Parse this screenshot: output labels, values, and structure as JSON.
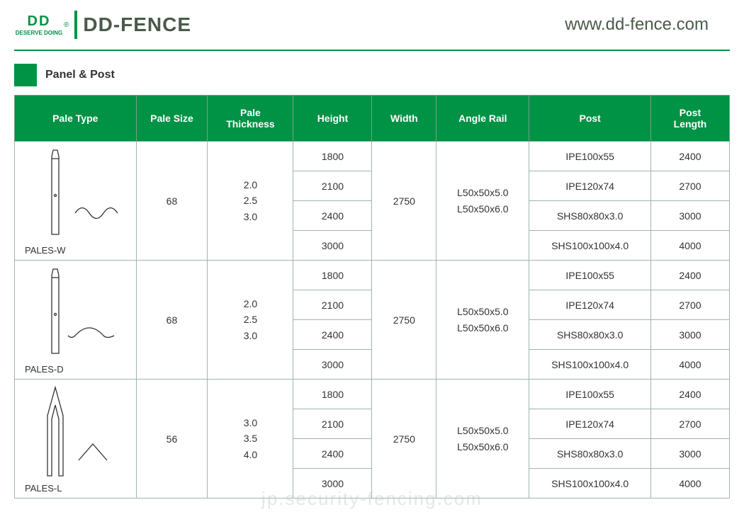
{
  "header": {
    "logo_top": "DD",
    "logo_bottom": "DESERVE DOING",
    "brand": "DD-FENCE",
    "url": "www.dd-fence.com",
    "reg": "®"
  },
  "section": {
    "title": "Panel & Post"
  },
  "table": {
    "headers": [
      "Pale Type",
      "Pale Size",
      "Pale\nThickness",
      "Height",
      "Width",
      "Angle Rail",
      "Post",
      "Post\nLength"
    ],
    "pale_size": [
      "68",
      "68",
      "56"
    ],
    "thickness": [
      "2.0\n2.5\n3.0",
      "2.0\n2.5\n3.0",
      "3.0\n3.5\n4.0"
    ],
    "height": [
      "1800",
      "2100",
      "2400",
      "3000"
    ],
    "width": "2750",
    "angle_rail": "L50x50x5.0\nL50x50x6.0",
    "post": [
      "IPE100x55",
      "IPE120x74",
      "SHS80x80x3.0",
      "SHS100x100x4.0"
    ],
    "post_length": [
      "2400",
      "2700",
      "3000",
      "4000"
    ],
    "pale_names": [
      "PALES-W",
      "PALES-D",
      "PALES-L"
    ]
  },
  "colors": {
    "green": "#009245",
    "border": "#a0b5a8"
  },
  "watermark": "jp.security-fencing.com"
}
